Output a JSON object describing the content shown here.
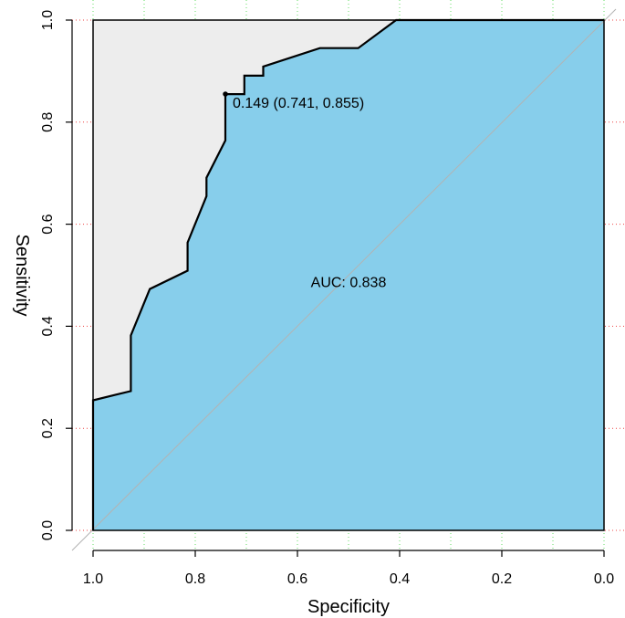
{
  "chart_data": {
    "type": "area",
    "title": "",
    "xlabel": "Specificity",
    "ylabel": "Sensitivity",
    "x_reversed": true,
    "xlim": [
      1.0,
      0.0
    ],
    "ylim": [
      0.0,
      1.0
    ],
    "xticks": [
      "1.0",
      "0.8",
      "0.6",
      "0.4",
      "0.2",
      "0.0"
    ],
    "yticks": [
      "0.0",
      "0.2",
      "0.4",
      "0.6",
      "0.8",
      "1.0"
    ],
    "grid": true,
    "series": [
      {
        "x": [
          1.0,
          1.0,
          0.926,
          0.926,
          0.889,
          0.815,
          0.815,
          0.778,
          0.778,
          0.741,
          0.741,
          0.704,
          0.704,
          0.667,
          0.667,
          0.556,
          0.481,
          0.407,
          0.0
        ],
        "y": [
          0.0,
          0.255,
          0.273,
          0.382,
          0.473,
          0.509,
          0.564,
          0.655,
          0.691,
          0.764,
          0.855,
          0.855,
          0.891,
          0.891,
          0.909,
          0.945,
          0.945,
          1.0,
          1.0
        ]
      }
    ],
    "best_threshold": {
      "x": 0.741,
      "y": 0.855,
      "label": "0.149 (0.741, 0.855)"
    },
    "auc_label": "AUC: 0.838",
    "colors": {
      "auc_fill": "#87ceeb",
      "max_auc_fill": "#ededed",
      "curve": "#000000",
      "diagonal": "#b3b3b3",
      "grid_x": "#66dd66",
      "grid_y": "#ee4444"
    }
  }
}
